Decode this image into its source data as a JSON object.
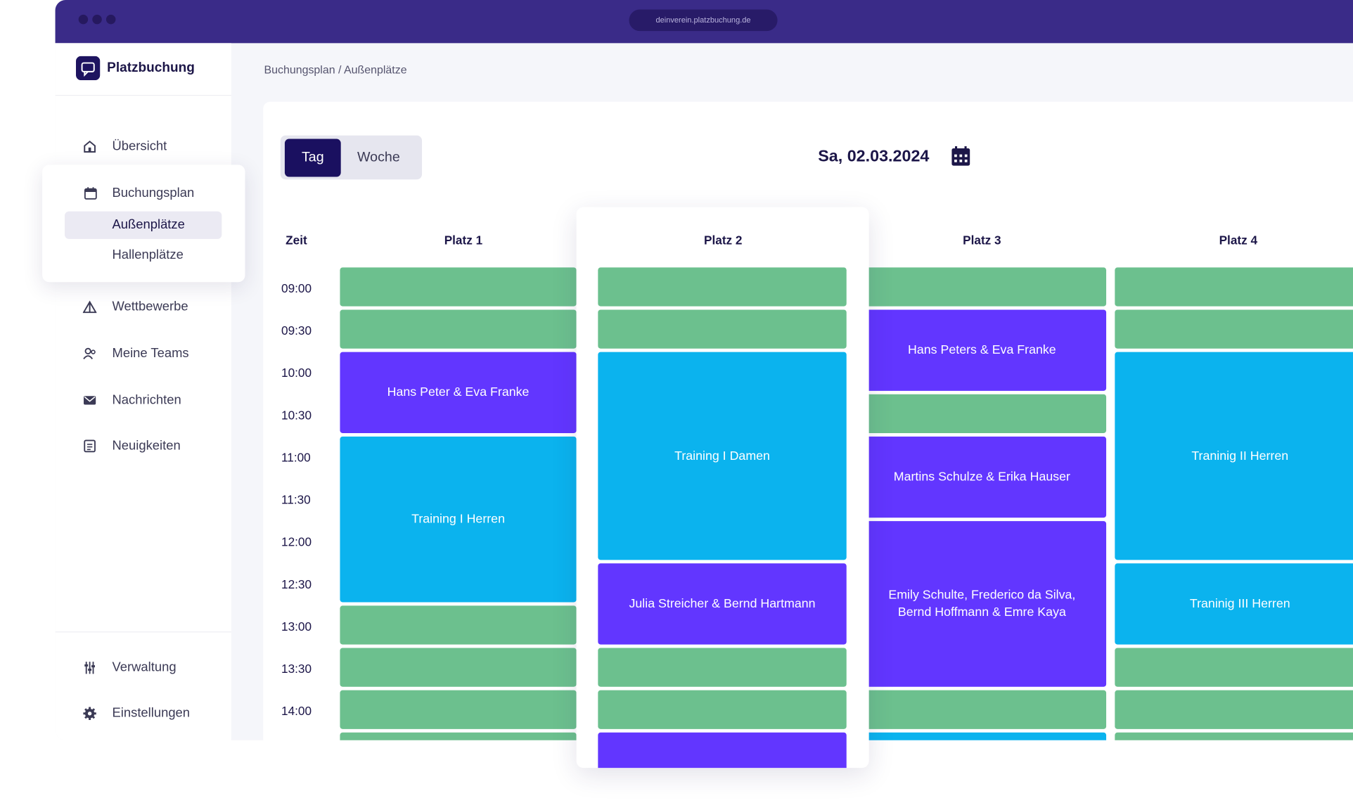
{
  "browser": {
    "url": "deinverein.platzbuchung.de"
  },
  "app": {
    "name": "Platzbuchung"
  },
  "nav": {
    "overview": "Übersicht",
    "booking_plan": "Buchungsplan",
    "outdoor": "Außenplätze",
    "indoor": "Hallenplätze",
    "competitions": "Wettbewerbe",
    "teams": "Meine Teams",
    "messages": "Nachrichten",
    "news": "Neuigkeiten",
    "admin": "Verwaltung",
    "settings": "Einstellungen"
  },
  "breadcrumb": "Buchungsplan / Außenplätze",
  "view_toggle": {
    "day": "Tag",
    "week": "Woche"
  },
  "date": "Sa, 02.03.2024",
  "schedule": {
    "time_header": "Zeit",
    "times": [
      "09:00",
      "09:30",
      "10:00",
      "10:30",
      "11:00",
      "11:30",
      "12:00",
      "12:30",
      "13:00",
      "13:30",
      "14:00"
    ],
    "courts": [
      {
        "name": "Platz 1",
        "bookings": [
          "Hans Peter & Eva Franke",
          "Training I Herren"
        ]
      },
      {
        "name": "Platz 2",
        "bookings": [
          "Training I Damen",
          "Julia Streicher & Bernd Hartmann"
        ]
      },
      {
        "name": "Platz 3",
        "bookings": [
          "Hans Peters & Eva Franke",
          "Martins Schulze & Erika Hauser",
          "Emily Schulte, Frederico da Silva, Bernd Hoffmann & Emre Kaya"
        ]
      },
      {
        "name": "Platz 4",
        "bookings": [
          "Traninig II Herren",
          "Traninig III Herren"
        ]
      }
    ]
  }
}
